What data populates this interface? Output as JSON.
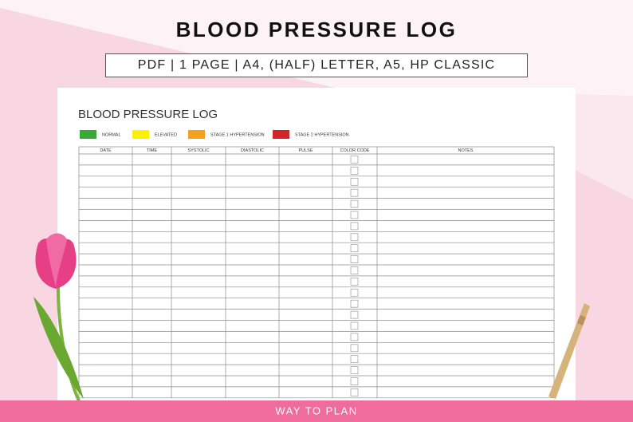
{
  "header": {
    "title": "BLOOD PRESSURE LOG",
    "subtitle": "PDF | 1 PAGE | A4, (HALF) LETTER, A5, HP CLASSIC"
  },
  "document": {
    "title": "BLOOD PRESSURE LOG",
    "legend": [
      {
        "label": "NORMAL",
        "color": "#3aa935"
      },
      {
        "label": "ELEVATED",
        "color": "#fff000"
      },
      {
        "label": "STAGE 1 HYPERTENSION",
        "color": "#f4a01c"
      },
      {
        "label": "STAGE 2 HYPERTENSION",
        "color": "#d3262b"
      }
    ],
    "table": {
      "columns": [
        "DATE",
        "TIME",
        "SYSTOLIC",
        "DIASTOLIC",
        "PULSE",
        "COLOR CODE",
        "NOTES"
      ]
    }
  },
  "footer": {
    "text": "WAY TO PLAN"
  }
}
